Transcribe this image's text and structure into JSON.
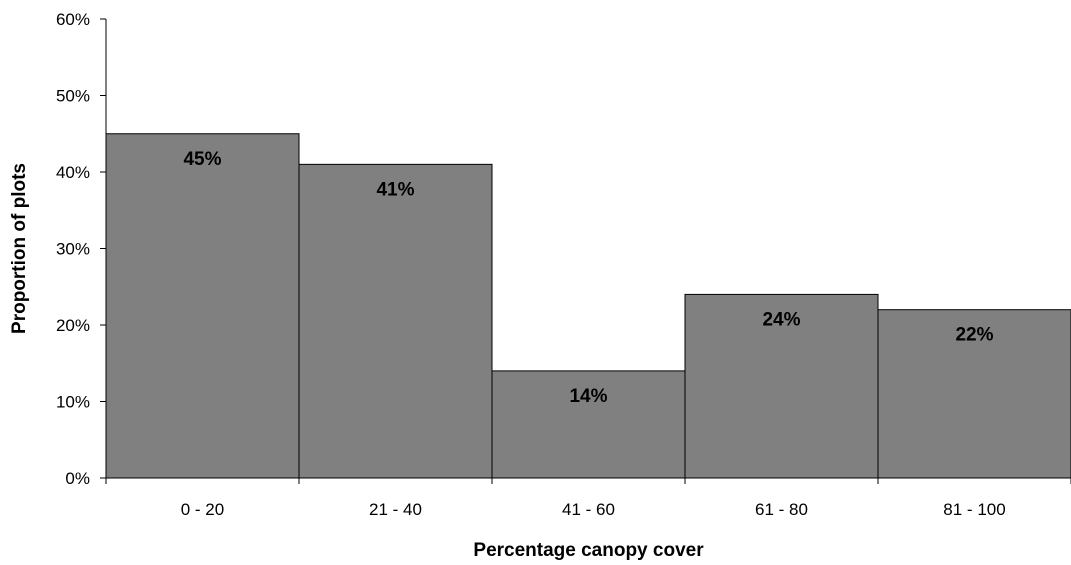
{
  "chart_data": {
    "type": "bar",
    "categories": [
      "0 - 20",
      "21 - 40",
      "41 - 60",
      "61 - 80",
      "81 - 100"
    ],
    "values": [
      45,
      41,
      14,
      24,
      22
    ],
    "data_labels": [
      "45%",
      "41%",
      "14%",
      "24%",
      "22%"
    ],
    "xlabel": "Percentage canopy cover",
    "ylabel": "Proportion of plots",
    "ylim": [
      0,
      60
    ],
    "yticks": [
      0,
      10,
      20,
      30,
      40,
      50,
      60
    ],
    "ytick_labels": [
      "0%",
      "10%",
      "20%",
      "30%",
      "40%",
      "50%",
      "60%"
    ],
    "grid": false,
    "legend": "none",
    "bar_color": "#808080",
    "bar_edge_color": "#000000"
  }
}
